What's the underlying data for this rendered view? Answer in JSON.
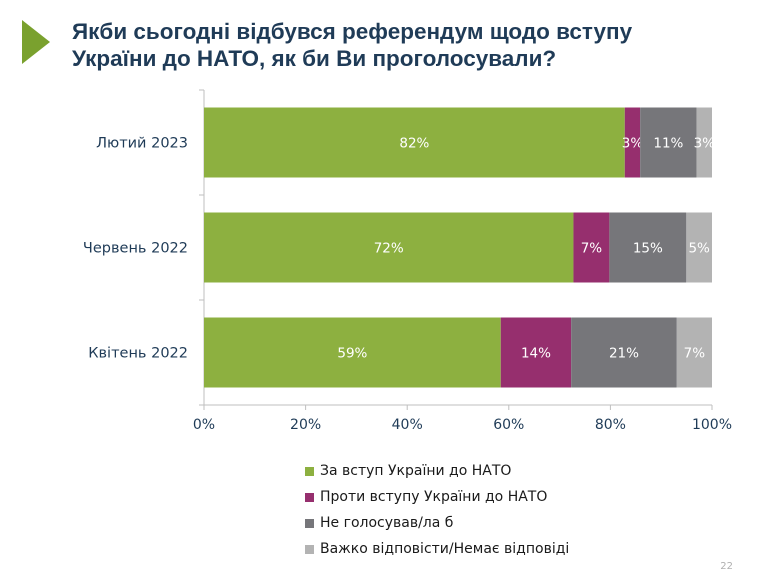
{
  "colors": {
    "accent": "#7aa12e",
    "title": "#1f3b57",
    "axis_text": "#1f3b57"
  },
  "title": {
    "line1": "Якби сьогодні відбувся референдум щодо вступу",
    "line2": "України до НАТО, як би Ви проголосували?"
  },
  "logo_icon": "triangle-play-icon",
  "page_number": "22",
  "chart_data": {
    "type": "bar",
    "orientation": "horizontal",
    "stacked": "percent",
    "categories": [
      "Лютий 2023",
      "Червень 2022",
      "Квітень 2022"
    ],
    "series": [
      {
        "name": "За вступ України до НАТО",
        "color": "#8db040",
        "values": [
          82,
          72,
          59
        ],
        "labels": [
          "82%",
          "72%",
          "59%"
        ]
      },
      {
        "name": "Проти вступу України до НАТО",
        "color": "#962f6e",
        "values": [
          3,
          7,
          14
        ],
        "labels": [
          "3%",
          "7%",
          "14%"
        ]
      },
      {
        "name": "Не голосував/ла б",
        "color": "#76767a",
        "values": [
          11,
          15,
          21
        ],
        "labels": [
          "11%",
          "15%",
          "21%"
        ]
      },
      {
        "name": "Важко відповісти/Немає відповіді",
        "color": "#b3b3b3",
        "values": [
          3,
          5,
          7
        ],
        "labels": [
          "3%",
          "5%",
          "7%"
        ]
      }
    ],
    "xlim": [
      0,
      100
    ],
    "xticks": [
      "0%",
      "20%",
      "40%",
      "60%",
      "80%",
      "100%"
    ],
    "grid": false,
    "legend": "bottom"
  }
}
